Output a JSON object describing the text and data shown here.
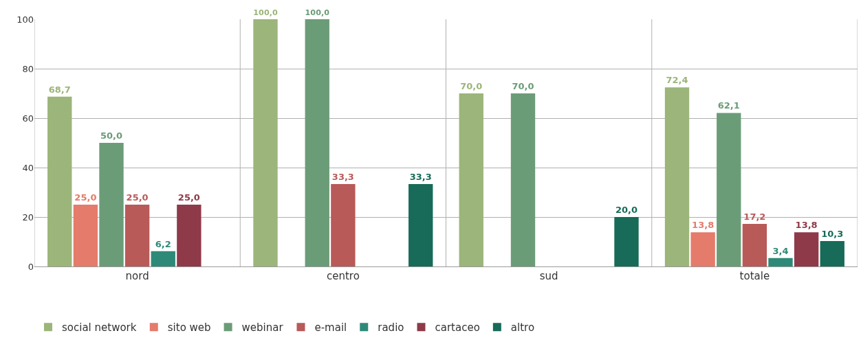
{
  "chart_data": {
    "type": "bar",
    "categories": [
      "nord",
      "centro",
      "sud",
      "totale"
    ],
    "ylim": [
      0,
      100
    ],
    "yticks": [
      0,
      20,
      40,
      60,
      80,
      100
    ],
    "grid": true,
    "legend": "bottom",
    "series": [
      {
        "name": "social network",
        "color": "#9cb57a",
        "values": [
          68.7,
          100,
          70,
          72.4
        ],
        "value_labels": [
          "68,7",
          "100,0",
          "70,0",
          "72,4"
        ]
      },
      {
        "name": "sito web",
        "color": "#e57b6b",
        "values": [
          25,
          null,
          null,
          13.8
        ],
        "value_labels": [
          "25,0",
          null,
          null,
          "13,8"
        ]
      },
      {
        "name": "webinar",
        "color": "#6b9c78",
        "values": [
          50,
          100,
          70,
          62.1
        ],
        "value_labels": [
          "50,0",
          "100,0",
          "70,0",
          "62,1"
        ]
      },
      {
        "name": "e-mail",
        "color": "#b85a58",
        "values": [
          25,
          33.3,
          null,
          17.2
        ],
        "value_labels": [
          "25,0",
          "33,3",
          null,
          "17,2"
        ]
      },
      {
        "name": "radio",
        "color": "#2e8a78",
        "values": [
          6.2,
          null,
          null,
          3.4
        ],
        "value_labels": [
          "6,2",
          null,
          null,
          "3,4"
        ]
      },
      {
        "name": "cartaceo",
        "color": "#8e3a48",
        "values": [
          25,
          null,
          null,
          13.8
        ],
        "value_labels": [
          "25,0",
          null,
          null,
          "13,8"
        ]
      },
      {
        "name": "altro",
        "color": "#176b58",
        "values": [
          null,
          33.3,
          20,
          10.3
        ],
        "value_labels": [
          null,
          "33,3",
          "20,0",
          "10,3"
        ]
      }
    ]
  }
}
